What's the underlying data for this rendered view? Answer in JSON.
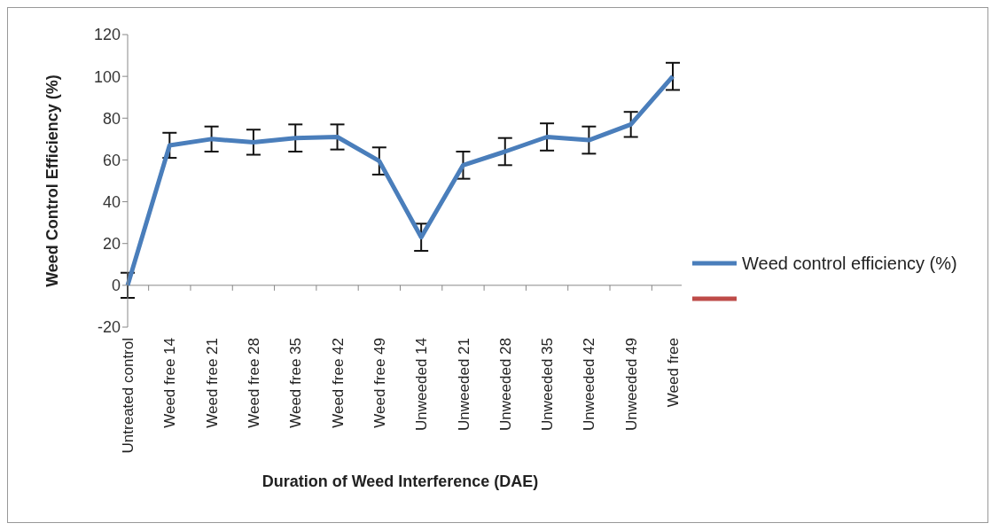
{
  "chart_data": {
    "type": "line",
    "xlabel": "Duration of Weed Interference (DAE)",
    "ylabel": "Weed Control Efficiency (%)",
    "categories": [
      "Untreated control",
      "Weed free 14",
      "Weed free 21",
      "Weed free 28",
      "Weed free 35",
      "Weed free 42",
      "Weed free 49",
      "Unweeded 14",
      "Unweeded 21",
      "Unweeded 28",
      "Unweeded 35",
      "Unweeded 42",
      "Unweeded 49",
      "Weed free"
    ],
    "series": [
      {
        "name": "Weed control efficiency (%)",
        "color": "#4a7ebb",
        "values": [
          0,
          67,
          70,
          68.5,
          70.5,
          71,
          59.5,
          23,
          57.5,
          64,
          71,
          69.5,
          77,
          100
        ],
        "errors": [
          6,
          6,
          6,
          6,
          6.5,
          6,
          6.5,
          6.5,
          6.5,
          6.5,
          6.5,
          6.5,
          6,
          6.5
        ]
      },
      {
        "color": "#be4b48",
        "values": [
          null,
          null,
          null,
          null,
          null,
          null,
          null,
          null,
          null,
          null,
          null,
          null,
          null,
          null
        ]
      }
    ],
    "ylim": [
      -20,
      120
    ],
    "yticks": [
      -20,
      0,
      20,
      40,
      60,
      80,
      100,
      120
    ],
    "ref_lines": [
      {
        "axis": "y",
        "value": 0,
        "color": "#888888"
      }
    ],
    "grid": false,
    "legend": "right",
    "marker": "none",
    "line_style": "solid"
  }
}
